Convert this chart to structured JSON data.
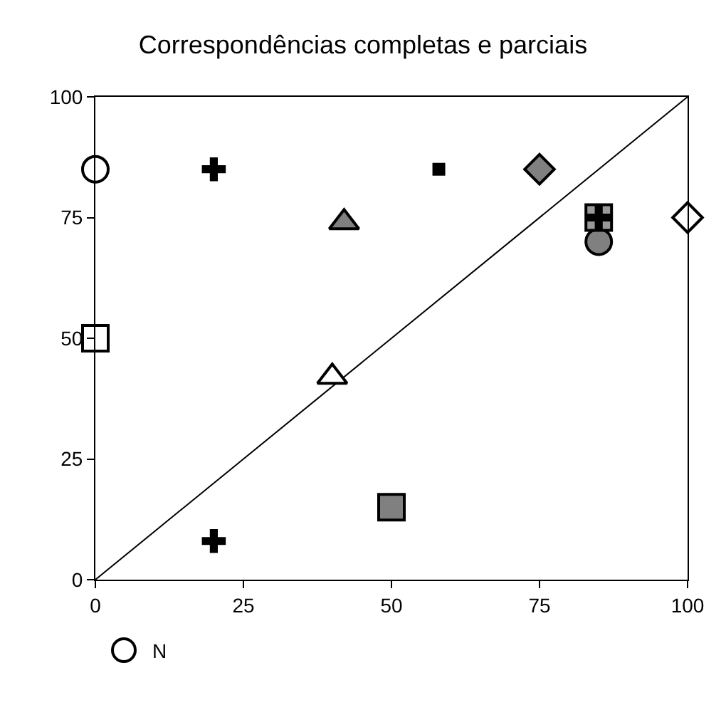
{
  "chart_data": {
    "type": "scatter",
    "title": "Correspondências completas e parciais",
    "xlim": [
      0,
      100
    ],
    "ylim": [
      0,
      100
    ],
    "xticks": [
      0,
      25,
      50,
      75,
      100
    ],
    "yticks": [
      0,
      25,
      50,
      75,
      100
    ],
    "legend": "bottom left",
    "series": [
      {
        "type": "line",
        "color": "#000000",
        "marker": "none",
        "line_style": "solid",
        "x": [
          0,
          100
        ],
        "values": [
          0,
          100
        ]
      },
      {
        "name": "N",
        "color": "#ffffff",
        "marker": "circle",
        "x": [
          0
        ],
        "values": [
          85
        ]
      },
      {
        "color": "#000000",
        "marker": "cross",
        "x": [
          20
        ],
        "values": [
          85
        ]
      },
      {
        "color": "#000000",
        "marker": "square",
        "x": [
          58
        ],
        "values": [
          85
        ]
      },
      {
        "color": "#808080",
        "marker": "diamond",
        "x": [
          75
        ],
        "values": [
          85
        ]
      },
      {
        "color": "#808080",
        "marker": "triangle",
        "x": [
          42
        ],
        "values": [
          74
        ]
      },
      {
        "color": "#808080",
        "marker": "circle",
        "x": [
          85
        ],
        "values": [
          70
        ]
      },
      {
        "color": "#999999",
        "marker": "square",
        "x": [
          85
        ],
        "values": [
          75
        ]
      },
      {
        "color": "#000000",
        "marker": "cross",
        "x": [
          85
        ],
        "values": [
          75
        ]
      },
      {
        "color": "#ffffff",
        "marker": "diamond",
        "x": [
          100
        ],
        "values": [
          75
        ]
      },
      {
        "color": "#ffffff",
        "marker": "square",
        "x": [
          0
        ],
        "values": [
          50
        ]
      },
      {
        "color": "#ffffff",
        "marker": "triangle",
        "x": [
          40
        ],
        "values": [
          42
        ]
      },
      {
        "color": "#000000",
        "marker": "cross",
        "x": [
          20
        ],
        "values": [
          8
        ]
      },
      {
        "color": "#808080",
        "marker": "square",
        "x": [
          50
        ],
        "values": [
          15
        ]
      }
    ]
  }
}
